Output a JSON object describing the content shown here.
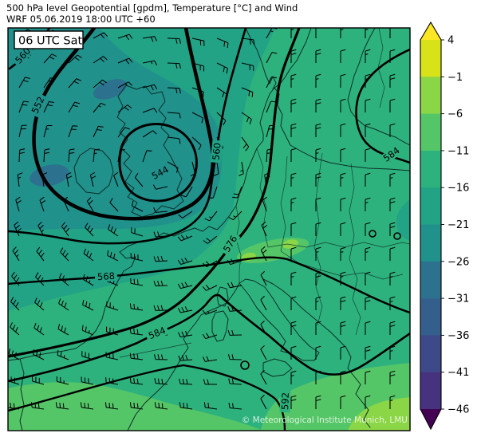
{
  "title": {
    "line1": "500 hPa level Geopotential [gpdm], Temperature [°C] and Wind",
    "line2": "WRF 05.06.2019 18:00 UTC +60"
  },
  "map": {
    "timestamp_label": "06 UTC Sat",
    "watermark": "© Meteorological Institute Munich, LMU",
    "contour_labels": [
      "552",
      "560",
      "544",
      "560",
      "568",
      "576",
      "584",
      "584",
      "592"
    ],
    "geopotential_levels_gpdm": [
      544,
      552,
      560,
      568,
      576,
      584,
      592
    ]
  },
  "colorbar": {
    "unit": "°C",
    "tick_labels": [
      "4",
      "−1",
      "−6",
      "−11",
      "−16",
      "−21",
      "−26",
      "−31",
      "−36",
      "−41",
      "−46"
    ],
    "segment_colors": [
      "#d8e219",
      "#8bd646",
      "#55c667",
      "#2eb27d",
      "#22a385",
      "#21918c",
      "#2c718e",
      "#345f8d",
      "#3e4989",
      "#46327e"
    ],
    "over_color": "#fde725",
    "under_color": "#440154"
  },
  "wind": {
    "grid_spacing": 31,
    "low_center": [
      205,
      212
    ],
    "staff_length": 15
  },
  "chart_data": {
    "type": "heatmap",
    "title": "500 hPa level Geopotential [gpdm], Temperature [°C] and Wind",
    "subtitle": "WRF 05.06.2019 18:00 UTC +60",
    "valid_label": "06 UTC Sat",
    "colorbar_ticks": [
      4,
      -1,
      -6,
      -11,
      -16,
      -21,
      -26,
      -31,
      -36,
      -41,
      -46
    ],
    "value_range_c": [
      -46,
      4
    ],
    "contour_levels_gpdm": [
      544,
      552,
      560,
      568,
      576,
      584,
      592
    ],
    "legend_position": "right"
  }
}
